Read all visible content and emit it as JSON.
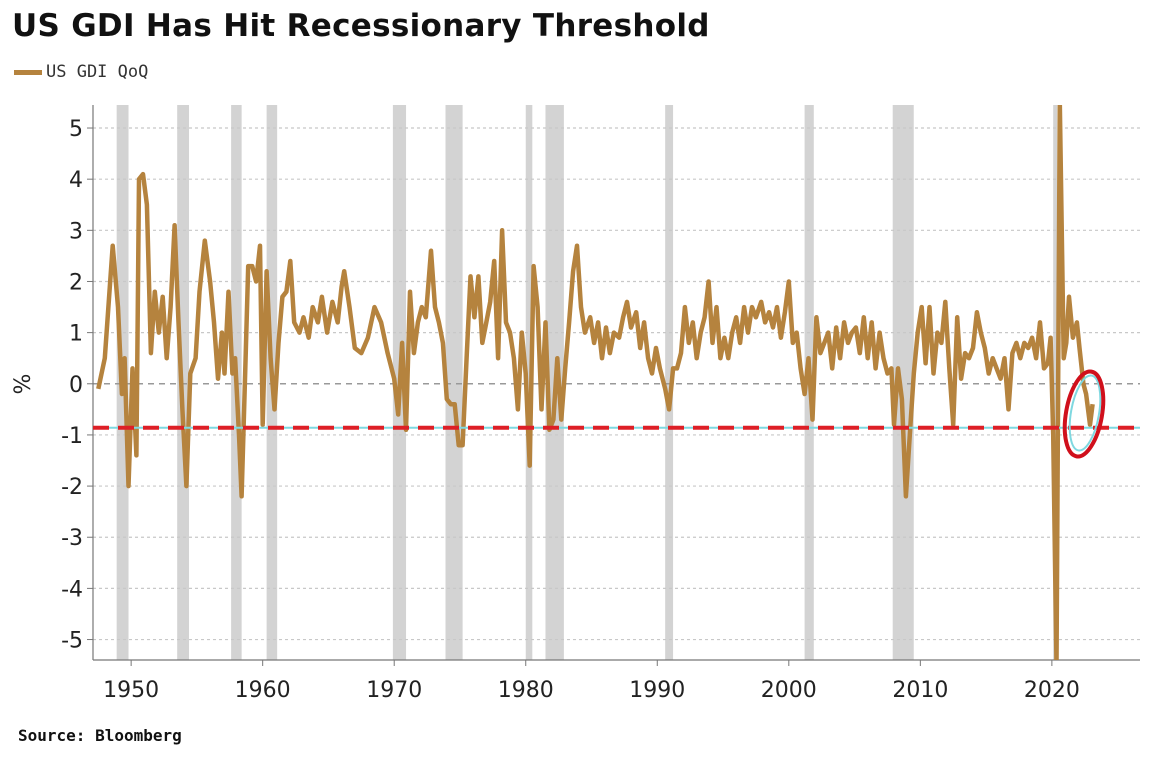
{
  "title": "US GDI Has Hit Recessionary Threshold",
  "source": "Source: Bloomberg",
  "chart_data": {
    "type": "line",
    "title": "US GDI Has Hit Recessionary Threshold",
    "xlabel": "",
    "ylabel": "%",
    "xlim": [
      1947.1,
      2026.7
    ],
    "ylim": [
      -5.4,
      5.45
    ],
    "grid": true,
    "legend_placement": "top-left",
    "colors": {
      "series": "#b5833e",
      "threshold": "#dd1f26",
      "recession": "#d3d3d3",
      "annotation": "#d0101c"
    },
    "yticks": [
      5,
      4,
      3,
      2,
      1,
      0,
      -1,
      -2,
      -3,
      -4,
      -5
    ],
    "ytick_labels": [
      "5",
      "4",
      "3",
      "2",
      "1",
      "0",
      "-1",
      "-2",
      "-3",
      "-4",
      "-5"
    ],
    "xticks": [
      1950,
      1960,
      1970,
      1980,
      1990,
      2000,
      2010,
      2020
    ],
    "xtick_labels": [
      "1950",
      "1960",
      "1970",
      "1980",
      "1990",
      "2000",
      "2010",
      "2020"
    ],
    "threshold": -0.86,
    "recessions": [
      [
        1948.9,
        1949.8
      ],
      [
        1953.5,
        1954.4
      ],
      [
        1957.6,
        1958.4
      ],
      [
        1960.3,
        1961.1
      ],
      [
        1969.9,
        1970.9
      ],
      [
        1973.9,
        1975.2
      ],
      [
        1980.0,
        1980.5
      ],
      [
        1981.5,
        1982.9
      ],
      [
        1990.6,
        1991.2
      ],
      [
        2001.2,
        2001.9
      ],
      [
        2007.9,
        2009.5
      ],
      [
        2020.1,
        2020.4
      ]
    ],
    "series": [
      {
        "name": "US GDI QoQ",
        "x": [
          1947.5,
          1948.0,
          1948.6,
          1949.0,
          1949.3,
          1949.5,
          1949.8,
          1950.1,
          1950.4,
          1950.6,
          1950.9,
          1951.2,
          1951.5,
          1951.8,
          1952.1,
          1952.4,
          1952.7,
          1953.0,
          1953.3,
          1953.6,
          1953.9,
          1954.2,
          1954.5,
          1954.9,
          1955.2,
          1955.6,
          1956.0,
          1956.3,
          1956.6,
          1956.9,
          1957.1,
          1957.4,
          1957.7,
          1957.9,
          1958.2,
          1958.4,
          1958.7,
          1958.9,
          1959.2,
          1959.5,
          1959.8,
          1960.0,
          1960.3,
          1960.6,
          1960.9,
          1961.2,
          1961.5,
          1961.8,
          1962.1,
          1962.4,
          1962.8,
          1963.1,
          1963.5,
          1963.8,
          1964.2,
          1964.5,
          1964.9,
          1965.3,
          1965.7,
          1966.0,
          1966.2,
          1966.6,
          1967.0,
          1967.5,
          1968.0,
          1968.5,
          1969.0,
          1969.5,
          1970.0,
          1970.3,
          1970.6,
          1970.9,
          1971.2,
          1971.5,
          1971.8,
          1972.1,
          1972.4,
          1972.8,
          1973.1,
          1973.4,
          1973.7,
          1974.0,
          1974.3,
          1974.6,
          1974.9,
          1975.2,
          1975.5,
          1975.8,
          1976.1,
          1976.4,
          1976.7,
          1977.0,
          1977.3,
          1977.6,
          1977.9,
          1978.2,
          1978.5,
          1978.8,
          1979.1,
          1979.4,
          1979.7,
          1980.0,
          1980.3,
          1980.6,
          1980.9,
          1981.2,
          1981.5,
          1981.8,
          1982.1,
          1982.4,
          1982.7,
          1983.0,
          1983.3,
          1983.6,
          1983.9,
          1984.2,
          1984.5,
          1984.9,
          1985.2,
          1985.5,
          1985.8,
          1986.1,
          1986.4,
          1986.7,
          1987.1,
          1987.4,
          1987.7,
          1988.0,
          1988.4,
          1988.7,
          1989.0,
          1989.3,
          1989.6,
          1989.9,
          1990.2,
          1990.6,
          1990.9,
          1991.2,
          1991.5,
          1991.8,
          1992.1,
          1992.4,
          1992.7,
          1993.0,
          1993.3,
          1993.6,
          1993.9,
          1994.2,
          1994.5,
          1994.8,
          1995.1,
          1995.4,
          1995.7,
          1996.0,
          1996.3,
          1996.6,
          1996.9,
          1997.2,
          1997.5,
          1997.9,
          1998.2,
          1998.5,
          1998.8,
          1999.1,
          1999.4,
          1999.7,
          2000.0,
          2000.3,
          2000.6,
          2000.9,
          2001.2,
          2001.5,
          2001.8,
          2002.1,
          2002.4,
          2002.7,
          2003.0,
          2003.3,
          2003.6,
          2003.9,
          2004.2,
          2004.5,
          2004.8,
          2005.1,
          2005.4,
          2005.7,
          2006.0,
          2006.3,
          2006.6,
          2006.9,
          2007.2,
          2007.5,
          2007.8,
          2008.0,
          2008.3,
          2008.6,
          2008.9,
          2009.2,
          2009.5,
          2009.8,
          2010.1,
          2010.4,
          2010.7,
          2011.0,
          2011.3,
          2011.6,
          2011.9,
          2012.2,
          2012.5,
          2012.8,
          2013.1,
          2013.4,
          2013.7,
          2014.0,
          2014.3,
          2014.6,
          2014.9,
          2015.2,
          2015.5,
          2015.8,
          2016.1,
          2016.4,
          2016.7,
          2017.0,
          2017.3,
          2017.6,
          2017.9,
          2018.2,
          2018.5,
          2018.8,
          2019.1,
          2019.4,
          2019.7,
          2019.9,
          2020.1,
          2020.35,
          2020.6,
          2020.9,
          2021.1,
          2021.3,
          2021.6,
          2021.9,
          2022.1,
          2022.4,
          2022.6,
          2022.9,
          2023.1
        ],
        "values": [
          -0.1,
          0.5,
          2.7,
          1.5,
          -0.2,
          0.5,
          -2.0,
          0.3,
          -1.4,
          4.0,
          4.1,
          3.5,
          0.6,
          1.8,
          1.0,
          1.7,
          0.5,
          1.5,
          3.1,
          1.2,
          -0.5,
          -2.0,
          0.2,
          0.5,
          1.8,
          2.8,
          2.0,
          1.2,
          0.1,
          1.0,
          0.2,
          1.8,
          0.2,
          0.5,
          -1.0,
          -2.2,
          0.5,
          2.3,
          2.3,
          2.0,
          2.7,
          -0.8,
          2.2,
          0.5,
          -0.5,
          0.8,
          1.7,
          1.8,
          2.4,
          1.2,
          1.0,
          1.3,
          0.9,
          1.5,
          1.2,
          1.7,
          1.0,
          1.6,
          1.2,
          1.9,
          2.2,
          1.5,
          0.7,
          0.6,
          0.9,
          1.5,
          1.2,
          0.6,
          0.1,
          -0.6,
          0.8,
          -0.9,
          1.8,
          0.6,
          1.2,
          1.5,
          1.3,
          2.6,
          1.5,
          1.2,
          0.8,
          -0.3,
          -0.4,
          -0.4,
          -1.2,
          -1.2,
          0.5,
          2.1,
          1.3,
          2.1,
          0.8,
          1.2,
          1.6,
          2.4,
          0.5,
          3.0,
          1.2,
          1.0,
          0.5,
          -0.5,
          1.0,
          0.2,
          -1.6,
          2.3,
          1.5,
          -0.5,
          1.2,
          -0.9,
          -0.7,
          0.5,
          -0.7,
          0.3,
          1.2,
          2.2,
          2.7,
          1.5,
          1.0,
          1.3,
          0.8,
          1.2,
          0.5,
          1.1,
          0.6,
          1.0,
          0.9,
          1.3,
          1.6,
          1.1,
          1.4,
          0.7,
          1.2,
          0.5,
          0.2,
          0.7,
          0.3,
          -0.1,
          -0.5,
          0.3,
          0.3,
          0.6,
          1.5,
          0.8,
          1.2,
          0.5,
          1.0,
          1.3,
          2.0,
          0.8,
          1.5,
          0.5,
          0.9,
          0.5,
          1.0,
          1.3,
          0.8,
          1.5,
          1.0,
          1.5,
          1.3,
          1.6,
          1.2,
          1.4,
          1.1,
          1.5,
          0.9,
          1.4,
          2.0,
          0.8,
          1.0,
          0.3,
          -0.2,
          0.5,
          -0.7,
          1.3,
          0.6,
          0.8,
          1.0,
          0.3,
          1.1,
          0.5,
          1.2,
          0.8,
          1.0,
          1.1,
          0.6,
          1.3,
          0.5,
          1.2,
          0.3,
          1.0,
          0.5,
          0.2,
          0.3,
          -0.8,
          0.3,
          -0.3,
          -2.2,
          -1.0,
          0.2,
          1.0,
          1.5,
          0.4,
          1.5,
          0.2,
          1.0,
          0.8,
          1.6,
          0.3,
          -0.8,
          1.3,
          0.1,
          0.6,
          0.5,
          0.7,
          1.4,
          1.0,
          0.7,
          0.2,
          0.5,
          0.3,
          0.1,
          0.5,
          -0.5,
          0.6,
          0.8,
          0.5,
          0.8,
          0.7,
          0.9,
          0.5,
          1.2,
          0.3,
          0.4,
          0.9,
          -1.0,
          -5.5,
          5.5,
          0.5,
          0.8,
          1.7,
          0.9,
          1.2,
          0.7,
          0.0,
          -0.2,
          -0.8,
          -0.4
        ]
      }
    ]
  }
}
